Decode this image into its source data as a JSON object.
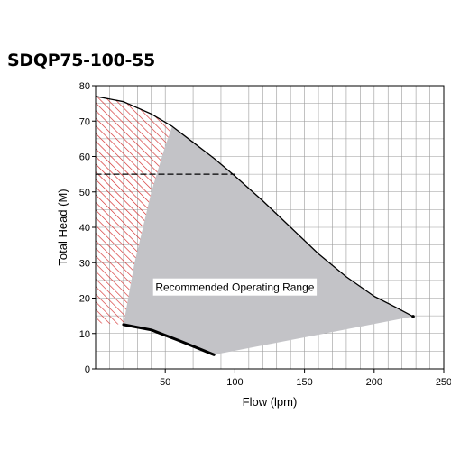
{
  "chart_data": {
    "type": "line",
    "title": "SDQP75-100-55",
    "xlabel": "Flow (lpm)",
    "ylabel": "Total Head (M)",
    "xlim": [
      0,
      250
    ],
    "ylim": [
      0,
      80
    ],
    "xticks": [
      50,
      100,
      150,
      200,
      250
    ],
    "yticks": [
      0,
      10,
      20,
      30,
      40,
      50,
      60,
      70,
      80
    ],
    "x_minor_step": 10,
    "y_minor_step": 5,
    "grid": true,
    "series": [
      {
        "role": "pump-curve",
        "x": [
          0,
          20,
          40,
          55,
          70,
          85,
          100,
          120,
          140,
          160,
          180,
          200,
          215,
          228
        ],
        "y": [
          77,
          75.5,
          72,
          68.5,
          64,
          59.5,
          54.5,
          47.5,
          40,
          32.5,
          26,
          20.5,
          17.5,
          14.8
        ],
        "color": "#000000"
      },
      {
        "role": "low-flow-limit",
        "x": [
          20,
          40,
          60,
          85
        ],
        "y": [
          12.5,
          11,
          8,
          4
        ],
        "color": "#000000"
      },
      {
        "role": "duty-line",
        "x": [
          0,
          100
        ],
        "y": [
          55,
          55
        ],
        "color": "#000000",
        "dashed": true
      }
    ],
    "regions": [
      {
        "role": "recommended-range",
        "label": "Recommended Operating Range",
        "fill": "#c3c3c7",
        "x": [
          55,
          70,
          85,
          100,
          120,
          140,
          160,
          180,
          200,
          215,
          228,
          85,
          60,
          40,
          20,
          28,
          40,
          50
        ],
        "y": [
          68.5,
          64,
          59.5,
          54.5,
          47.5,
          40,
          32.5,
          26,
          20.5,
          17.5,
          14.8,
          4,
          8,
          11,
          12.5,
          30,
          50,
          63
        ]
      },
      {
        "role": "not-recommended",
        "fill": "hatch",
        "color": "#d42a2a",
        "x": [
          0,
          20,
          40,
          55,
          50,
          40,
          28,
          20,
          0
        ],
        "y": [
          77,
          75.5,
          72,
          68.5,
          63,
          50,
          30,
          12.5,
          13
        ]
      }
    ]
  }
}
